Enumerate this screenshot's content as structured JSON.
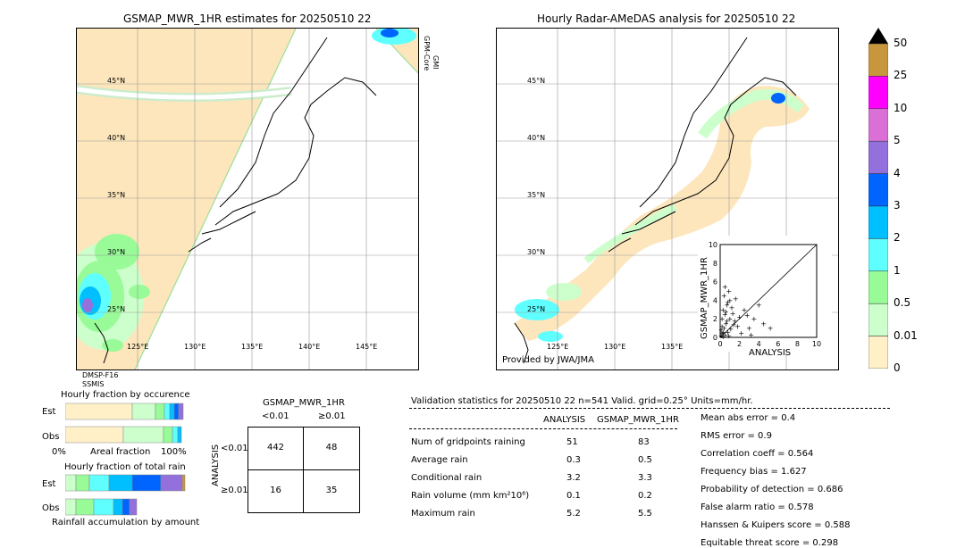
{
  "left_map": {
    "title": "GSMAP_MWR_1HR estimates for 20250510 22",
    "sensor_top": "GPM-Core",
    "sensor_top2": "GMI",
    "sensor_bottom1": "DMSP-F16",
    "sensor_bottom2": "SSMIS",
    "lat_labels": [
      "45°N",
      "40°N",
      "35°N",
      "30°N",
      "25°N"
    ],
    "lon_labels": [
      "125°E",
      "130°E",
      "135°E",
      "140°E",
      "145°E"
    ]
  },
  "right_map": {
    "title": "Hourly Radar-AMeDAS analysis for 20250510 22",
    "lat_labels": [
      "45°N",
      "40°N",
      "35°N",
      "30°N",
      "25°N"
    ],
    "lon_labels": [
      "125°E",
      "130°E",
      "135°E"
    ],
    "credit": "Provided by JWA/JMA"
  },
  "colorbar": {
    "labels": [
      "50",
      "25",
      "10",
      "5",
      "4",
      "3",
      "2",
      "1",
      "0.5",
      "0.01",
      "0"
    ],
    "colors": [
      "#c8963c",
      "#ff00ff",
      "#da70d6",
      "#9370db",
      "#0064ff",
      "#00bfff",
      "#5fffff",
      "#98fb98",
      "#ccffcc",
      "#fff0c8"
    ],
    "top_color": "#000000"
  },
  "occurrence": {
    "title": "Hourly fraction by occurence",
    "row_est": "Est",
    "row_obs": "Obs",
    "xlabel": "Areal fraction",
    "x_left": "0%",
    "x_right": "100%"
  },
  "total_rain": {
    "title": "Hourly fraction of total rain",
    "row_est": "Est",
    "row_obs": "Obs",
    "xlabel": "Rainfall accumulation by amount"
  },
  "contingency": {
    "title": "GSMAP_MWR_1HR",
    "col1": "<0.01",
    "col2": "≥0.01",
    "row1": "<0.01",
    "row2": "≥0.01",
    "ylabel": "ANALYSIS",
    "cells": [
      "442",
      "48",
      "16",
      "35"
    ]
  },
  "validation": {
    "header": "Validation statistics for 20250510 22  n=541 Valid. grid=0.25° Units=mm/hr.",
    "col_analysis": "ANALYSIS",
    "col_gsmap": "GSMAP_MWR_1HR",
    "rows": [
      {
        "label": "Num of gridpoints raining",
        "a": "51",
        "g": "83"
      },
      {
        "label": "Average rain",
        "a": "0.3",
        "g": "0.5"
      },
      {
        "label": "Conditional rain",
        "a": "3.2",
        "g": "3.3"
      },
      {
        "label": "Rain volume (mm km²10⁶)",
        "a": "0.1",
        "g": "0.2"
      },
      {
        "label": "Maximum rain",
        "a": "5.2",
        "g": "5.5"
      }
    ],
    "scores": [
      "Mean abs error =    0.4",
      "RMS error =    0.9",
      "Correlation coeff =  0.564",
      "Frequency bias =  1.627",
      "Probability of detection =  0.686",
      "False alarm ratio =  0.578",
      "Hanssen & Kuipers score =  0.588",
      "Equitable threat score =  0.298"
    ]
  },
  "chart_data": {
    "type": "scatter",
    "title": "",
    "xlabel": "ANALYSIS",
    "ylabel": "GSMAP_MWR_1HR",
    "xlim": [
      0,
      10
    ],
    "ylim": [
      0,
      10
    ],
    "ticks": [
      "0",
      "2",
      "4",
      "6",
      "8",
      "10"
    ],
    "points": [
      [
        0.1,
        0.2
      ],
      [
        0.2,
        0.5
      ],
      [
        0.3,
        0.1
      ],
      [
        0.4,
        1.0
      ],
      [
        0.5,
        0.3
      ],
      [
        0.6,
        1.5
      ],
      [
        0.2,
        2.0
      ],
      [
        0.8,
        0.6
      ],
      [
        0.3,
        3.0
      ],
      [
        0.5,
        2.5
      ],
      [
        0.7,
        3.5
      ],
      [
        1.0,
        4.0
      ],
      [
        0.4,
        4.5
      ],
      [
        0.9,
        5.0
      ],
      [
        1.2,
        3.2
      ],
      [
        0.6,
        2.8
      ],
      [
        1.5,
        1.8
      ],
      [
        2.0,
        2.2
      ],
      [
        1.1,
        0.9
      ],
      [
        1.8,
        1.2
      ],
      [
        2.5,
        3.0
      ],
      [
        3.0,
        1.0
      ],
      [
        3.5,
        2.0
      ],
      [
        4.0,
        3.5
      ],
      [
        1.3,
        2.6
      ],
      [
        0.2,
        1.2
      ],
      [
        0.1,
        0.8
      ],
      [
        0.7,
        1.8
      ],
      [
        2.2,
        0.5
      ],
      [
        5.2,
        1.0
      ],
      [
        1.6,
        4.2
      ],
      [
        0.8,
        3.8
      ],
      [
        1.0,
        2.0
      ],
      [
        0.5,
        5.5
      ],
      [
        3.2,
        0.3
      ],
      [
        2.8,
        2.4
      ],
      [
        1.4,
        1.4
      ],
      [
        0.3,
        0.6
      ],
      [
        0.9,
        0.2
      ],
      [
        4.5,
        1.5
      ]
    ]
  }
}
